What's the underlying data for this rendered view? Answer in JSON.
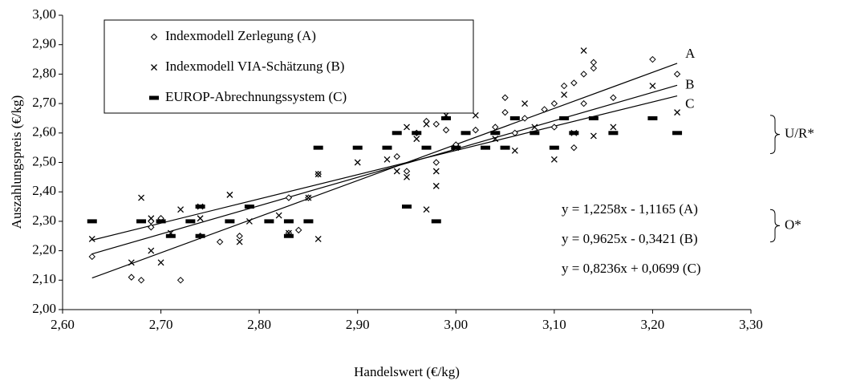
{
  "chart_data": {
    "type": "scatter",
    "xlabel": "Handelswert (€/kg)",
    "ylabel": "Auszahlungspreis (€/kg)",
    "xlim": [
      2.6,
      3.3
    ],
    "ylim": [
      2.0,
      3.0
    ],
    "xticks": [
      {
        "value": 2.6,
        "label": "2,60"
      },
      {
        "value": 2.7,
        "label": "2,70"
      },
      {
        "value": 2.8,
        "label": "2,80"
      },
      {
        "value": 2.9,
        "label": "2,90"
      },
      {
        "value": 3.0,
        "label": "3,00"
      },
      {
        "value": 3.1,
        "label": "3,10"
      },
      {
        "value": 3.2,
        "label": "3,20"
      },
      {
        "value": 3.3,
        "label": "3,30"
      }
    ],
    "yticks": [
      {
        "value": 2.0,
        "label": "2,00"
      },
      {
        "value": 2.1,
        "label": "2,10"
      },
      {
        "value": 2.2,
        "label": "2,20"
      },
      {
        "value": 2.3,
        "label": "2,30"
      },
      {
        "value": 2.4,
        "label": "2,40"
      },
      {
        "value": 2.5,
        "label": "2,50"
      },
      {
        "value": 2.6,
        "label": "2,60"
      },
      {
        "value": 2.7,
        "label": "2,70"
      },
      {
        "value": 2.8,
        "label": "2,80"
      },
      {
        "value": 2.9,
        "label": "2,90"
      },
      {
        "value": 3.0,
        "label": "3,00"
      }
    ],
    "legend": "upper left",
    "series": [
      {
        "name": "Indexmodell Zerlegung (A)",
        "marker": "diamond",
        "color": "#000000",
        "x": [
          2.63,
          2.67,
          2.68,
          2.69,
          2.69,
          2.7,
          2.72,
          2.74,
          2.76,
          2.78,
          2.83,
          2.83,
          2.84,
          2.85,
          2.86,
          2.94,
          2.95,
          2.96,
          2.97,
          2.98,
          2.98,
          2.99,
          3.0,
          3.02,
          3.04,
          3.05,
          3.05,
          3.06,
          3.07,
          3.09,
          3.1,
          3.1,
          3.11,
          3.12,
          3.12,
          3.13,
          3.13,
          3.14,
          3.14,
          3.16,
          3.2,
          3.225
        ],
        "values": [
          2.18,
          2.11,
          2.1,
          2.3,
          2.28,
          2.31,
          2.1,
          2.25,
          2.23,
          2.25,
          2.38,
          2.26,
          2.27,
          2.38,
          2.46,
          2.52,
          2.47,
          2.6,
          2.64,
          2.5,
          2.63,
          2.61,
          2.56,
          2.61,
          2.62,
          2.67,
          2.72,
          2.6,
          2.65,
          2.68,
          2.7,
          2.62,
          2.76,
          2.77,
          2.55,
          2.8,
          2.7,
          2.84,
          2.82,
          2.72,
          2.85,
          2.8
        ]
      },
      {
        "name": "Indexmodell VIA-Schätzung (B)",
        "marker": "x",
        "color": "#000000",
        "x": [
          2.63,
          2.67,
          2.68,
          2.69,
          2.69,
          2.7,
          2.71,
          2.72,
          2.74,
          2.74,
          2.77,
          2.78,
          2.79,
          2.82,
          2.83,
          2.85,
          2.86,
          2.86,
          2.9,
          2.93,
          2.94,
          2.95,
          2.95,
          2.96,
          2.97,
          2.98,
          2.98,
          2.97,
          2.99,
          3.0,
          3.02,
          3.04,
          3.06,
          3.07,
          3.08,
          3.1,
          3.11,
          3.12,
          3.13,
          3.14,
          3.16,
          3.2,
          3.225
        ],
        "values": [
          2.24,
          2.16,
          2.38,
          2.2,
          2.31,
          2.16,
          2.26,
          2.34,
          2.35,
          2.31,
          2.39,
          2.23,
          2.3,
          2.32,
          2.26,
          2.38,
          2.24,
          2.46,
          2.5,
          2.51,
          2.47,
          2.45,
          2.62,
          2.58,
          2.63,
          2.42,
          2.47,
          2.34,
          2.66,
          2.55,
          2.66,
          2.58,
          2.54,
          2.7,
          2.62,
          2.51,
          2.73,
          2.6,
          2.88,
          2.59,
          2.62,
          2.76,
          2.67
        ]
      },
      {
        "name": "EUROP-Abrechnungssystem (C)",
        "marker": "dash",
        "color": "#000000",
        "x": [
          2.63,
          2.68,
          2.7,
          2.71,
          2.73,
          2.74,
          2.74,
          2.77,
          2.79,
          2.81,
          2.83,
          2.83,
          2.85,
          2.86,
          2.9,
          2.93,
          2.94,
          2.95,
          2.96,
          2.97,
          2.98,
          2.99,
          3.0,
          3.01,
          3.03,
          3.04,
          3.05,
          3.06,
          3.08,
          3.1,
          3.11,
          3.12,
          3.14,
          3.16,
          3.2,
          3.225
        ],
        "values": [
          2.3,
          2.3,
          2.3,
          2.25,
          2.3,
          2.35,
          2.25,
          2.3,
          2.35,
          2.3,
          2.25,
          2.3,
          2.3,
          2.55,
          2.55,
          2.55,
          2.6,
          2.35,
          2.6,
          2.55,
          2.3,
          2.65,
          2.55,
          2.6,
          2.55,
          2.6,
          2.55,
          2.65,
          2.6,
          2.55,
          2.65,
          2.6,
          2.65,
          2.6,
          2.65,
          2.6
        ]
      }
    ],
    "trend_lines": [
      {
        "name": "A",
        "x": [
          2.63,
          3.225
        ],
        "values": [
          2.1073,
          2.8367
        ]
      },
      {
        "name": "B",
        "x": [
          2.63,
          3.225
        ],
        "values": [
          2.1893,
          2.762
        ]
      },
      {
        "name": "C",
        "x": [
          2.63,
          3.225
        ],
        "values": [
          2.236,
          2.726
        ]
      }
    ],
    "annotations": [
      "y = 1,2258x - 1,1165 (A)",
      "y = 0,9625x - 0,3421 (B)",
      "y = 0,8236x + 0,0699 (C)"
    ],
    "brackets": [
      {
        "label": "U/R*",
        "range": [
          2.53,
          2.66
        ]
      },
      {
        "label": "O*",
        "range": [
          2.23,
          2.34
        ]
      }
    ]
  }
}
